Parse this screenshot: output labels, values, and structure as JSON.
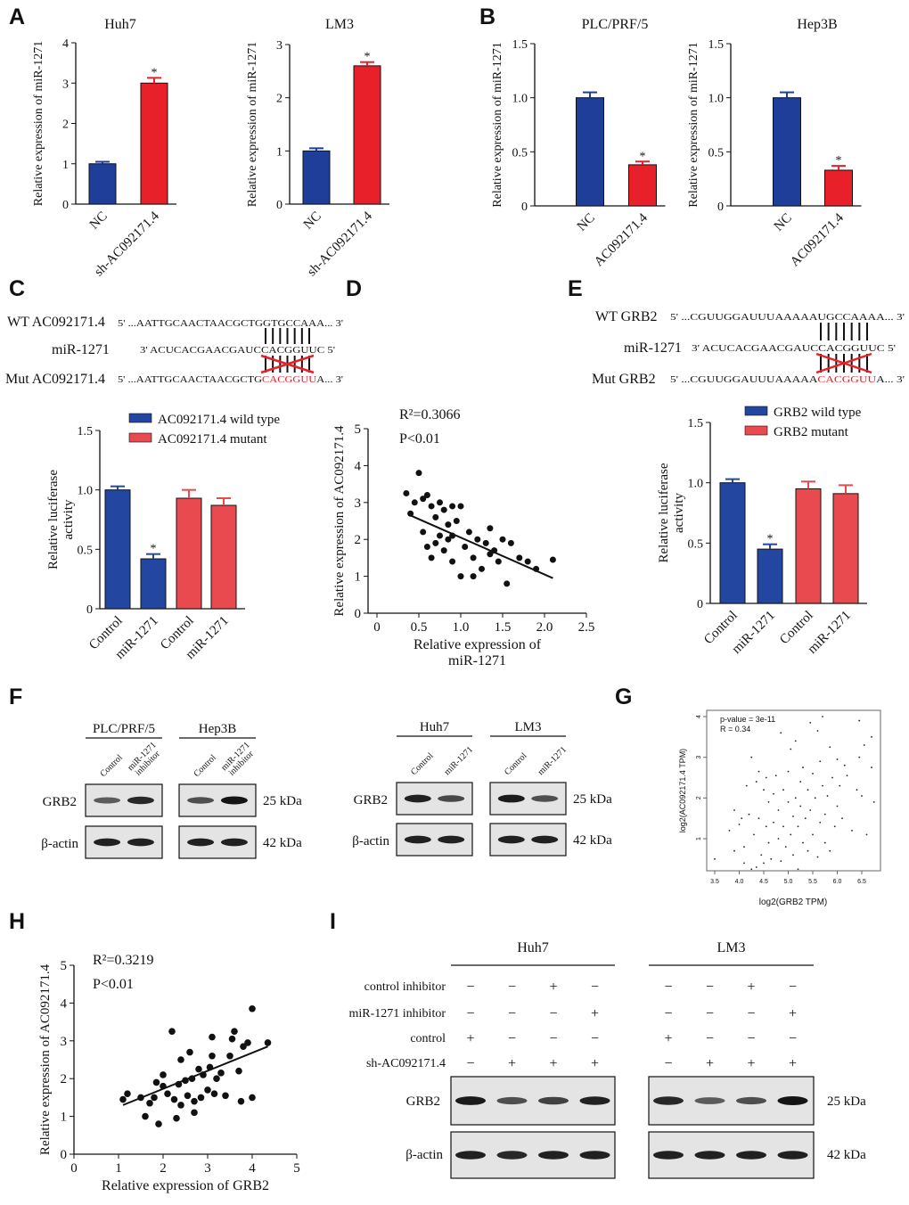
{
  "panel_letters": [
    "A",
    "B",
    "C",
    "D",
    "E",
    "F",
    "G",
    "H",
    "I"
  ],
  "colors": {
    "blue": "#1f3e9a",
    "red": "#e8202a",
    "red_light": "#e84a4f",
    "blue_luc": "#2347a0",
    "seq_red": "#e8202a"
  },
  "chart_data": [
    {
      "id": "A1",
      "type": "bar",
      "title": "Huh7",
      "ylabel": "Relative expression of miR-1271",
      "categories": [
        "NC",
        "sh-AC092171.4"
      ],
      "values": [
        1.0,
        3.0
      ],
      "errors": [
        0.05,
        0.13
      ],
      "significance": [
        "",
        "*"
      ],
      "ylim": [
        0,
        4
      ],
      "yticks": [
        "0",
        "1",
        "2",
        "3",
        "4"
      ],
      "bar_colors": [
        "blue",
        "red"
      ]
    },
    {
      "id": "A2",
      "type": "bar",
      "title": "LM3",
      "ylabel": "Relative expression of miR-1271",
      "categories": [
        "NC",
        "sh-AC092171.4"
      ],
      "values": [
        1.0,
        2.6
      ],
      "errors": [
        0.05,
        0.07
      ],
      "significance": [
        "",
        "*"
      ],
      "ylim": [
        0,
        3
      ],
      "yticks": [
        "0",
        "1",
        "2",
        "3"
      ],
      "bar_colors": [
        "blue",
        "red"
      ]
    },
    {
      "id": "B1",
      "type": "bar",
      "title": "PLC/PRF/5",
      "ylabel": "Relative expression of miR-1271",
      "categories": [
        "NC",
        "AC092171.4"
      ],
      "values": [
        1.0,
        0.38
      ],
      "errors": [
        0.05,
        0.03
      ],
      "significance": [
        "",
        "*"
      ],
      "ylim": [
        0,
        1.5
      ],
      "yticks": [
        "0",
        "0.5",
        "1.0",
        "1.5"
      ],
      "bar_colors": [
        "blue",
        "red"
      ]
    },
    {
      "id": "B2",
      "type": "bar",
      "title": "Hep3B",
      "ylabel": "Relative expression of miR-1271",
      "categories": [
        "NC",
        "AC092171.4"
      ],
      "values": [
        1.0,
        0.33
      ],
      "errors": [
        0.05,
        0.04
      ],
      "significance": [
        "",
        "*"
      ],
      "ylim": [
        0,
        1.5
      ],
      "yticks": [
        "0",
        "0.5",
        "1.0",
        "1.5"
      ],
      "bar_colors": [
        "blue",
        "red"
      ]
    },
    {
      "id": "C",
      "type": "bar",
      "title": "",
      "ylabel": "Relative luciferase activity",
      "categories": [
        "Control",
        "miR-1271",
        "Control",
        "miR-1271"
      ],
      "values": [
        1.0,
        0.42,
        0.93,
        0.87
      ],
      "errors": [
        0.03,
        0.04,
        0.07,
        0.06
      ],
      "significance": [
        "",
        "*",
        "",
        ""
      ],
      "ylim": [
        0,
        1.5
      ],
      "yticks": [
        "0",
        "0.5",
        "1.0",
        "1.5"
      ],
      "bar_colors": [
        "blue_luc",
        "blue_luc",
        "red_light",
        "red_light"
      ],
      "legend": [
        {
          "label": "AC092171.4 wild type",
          "color": "blue_luc"
        },
        {
          "label": "AC092171.4  mutant",
          "color": "red_light"
        }
      ]
    },
    {
      "id": "E",
      "type": "bar",
      "title": "",
      "ylabel": "Relative luciferase activity",
      "categories": [
        "Control",
        "miR-1271",
        "Control",
        "miR-1271"
      ],
      "values": [
        1.0,
        0.45,
        0.95,
        0.91
      ],
      "errors": [
        0.03,
        0.04,
        0.06,
        0.07
      ],
      "significance": [
        "",
        "*",
        "",
        ""
      ],
      "ylim": [
        0,
        1.5
      ],
      "yticks": [
        "0",
        "0.5",
        "1.0",
        "1.5"
      ],
      "bar_colors": [
        "blue_luc",
        "blue_luc",
        "red_light",
        "red_light"
      ],
      "legend": [
        {
          "label": "GRB2 wild type",
          "color": "blue_luc"
        },
        {
          "label": "GRB2 mutant",
          "color": "red_light"
        }
      ]
    },
    {
      "id": "D",
      "type": "scatter",
      "xlabel": "Relative expression of",
      "xlabel2": "miR-1271",
      "ylabel": "Relative expression of AC092171.4",
      "annotation": "R²=0.3066",
      "pvalue": "P<0.01",
      "xlim": [
        0,
        2.5
      ],
      "ylim": [
        0,
        5
      ],
      "xticks": [
        "0",
        "0.5",
        "1.0",
        "1.5",
        "2.0",
        "2.5"
      ],
      "yticks": [
        "0",
        "1",
        "2",
        "3",
        "4",
        "5"
      ],
      "points": [
        [
          0.35,
          3.25
        ],
        [
          0.45,
          3.0
        ],
        [
          0.5,
          3.8
        ],
        [
          0.55,
          3.1
        ],
        [
          0.6,
          3.2
        ],
        [
          0.4,
          2.7
        ],
        [
          0.65,
          2.9
        ],
        [
          0.7,
          2.6
        ],
        [
          0.75,
          3.0
        ],
        [
          0.8,
          2.8
        ],
        [
          0.85,
          2.4
        ],
        [
          0.9,
          2.9
        ],
        [
          0.55,
          2.2
        ],
        [
          0.6,
          1.8
        ],
        [
          0.7,
          1.9
        ],
        [
          0.65,
          1.5
        ],
        [
          0.75,
          2.1
        ],
        [
          0.8,
          1.7
        ],
        [
          0.85,
          2.0
        ],
        [
          0.9,
          1.4
        ],
        [
          0.95,
          2.5
        ],
        [
          1.0,
          1.0
        ],
        [
          1.05,
          1.8
        ],
        [
          1.1,
          2.2
        ],
        [
          1.15,
          1.5
        ],
        [
          1.2,
          2.0
        ],
        [
          1.25,
          1.2
        ],
        [
          1.3,
          1.9
        ],
        [
          1.35,
          2.3
        ],
        [
          1.4,
          1.7
        ],
        [
          1.45,
          1.4
        ],
        [
          1.5,
          2.0
        ],
        [
          1.55,
          0.8
        ],
        [
          1.6,
          1.9
        ],
        [
          1.7,
          1.5
        ],
        [
          1.8,
          1.4
        ],
        [
          1.9,
          1.2
        ],
        [
          2.1,
          1.45
        ],
        [
          1.0,
          2.9
        ],
        [
          0.9,
          2.1
        ],
        [
          1.15,
          1.0
        ],
        [
          1.35,
          1.6
        ]
      ],
      "fit": [
        [
          0.4,
          2.65
        ],
        [
          2.1,
          0.95
        ]
      ]
    },
    {
      "id": "G",
      "type": "scatter",
      "xlabel": "log2(GRB2 TPM)",
      "ylabel": "log2(AC092171.4 TPM)",
      "annotation": "p-value = 3e-11",
      "annotation2": "R = 0.34",
      "xlim": [
        3.4,
        6.8
      ],
      "ylim": [
        0.1,
        4.1
      ],
      "xticks": [
        "3.5",
        "4.0",
        "4.5",
        "5.0",
        "5.5",
        "6.0",
        "6.5"
      ],
      "yticks": [
        "1",
        "2",
        "3",
        "4"
      ],
      "points": [
        [
          3.5,
          0.5
        ],
        [
          3.8,
          1.2
        ],
        [
          3.9,
          0.7
        ],
        [
          3.9,
          1.7
        ],
        [
          4.0,
          1.35
        ],
        [
          4.05,
          1.5
        ],
        [
          4.1,
          0.4
        ],
        [
          4.1,
          0.8
        ],
        [
          4.15,
          2.3
        ],
        [
          4.2,
          1.6
        ],
        [
          4.25,
          0.25
        ],
        [
          4.25,
          3.0
        ],
        [
          4.3,
          1.1
        ],
        [
          4.35,
          2.4
        ],
        [
          4.35,
          0.3
        ],
        [
          4.4,
          2.65
        ],
        [
          4.4,
          1.5
        ],
        [
          4.45,
          0.6
        ],
        [
          4.5,
          2.2
        ],
        [
          4.5,
          0.4
        ],
        [
          4.55,
          1.3
        ],
        [
          4.55,
          2.5
        ],
        [
          4.6,
          0.9
        ],
        [
          4.6,
          1.9
        ],
        [
          4.65,
          0.5
        ],
        [
          4.7,
          2.1
        ],
        [
          4.7,
          1.4
        ],
        [
          4.75,
          2.55
        ],
        [
          4.8,
          1.0
        ],
        [
          4.8,
          1.7
        ],
        [
          4.85,
          3.6
        ],
        [
          4.85,
          0.45
        ],
        [
          4.9,
          2.2
        ],
        [
          4.9,
          1.3
        ],
        [
          4.95,
          0.8
        ],
        [
          5.0,
          1.9
        ],
        [
          5.0,
          2.65
        ],
        [
          5.05,
          1.1
        ],
        [
          5.05,
          3.2
        ],
        [
          5.1,
          1.55
        ],
        [
          5.1,
          0.6
        ],
        [
          5.15,
          2.0
        ],
        [
          5.15,
          3.4
        ],
        [
          5.2,
          1.3
        ],
        [
          5.2,
          0.25
        ],
        [
          5.25,
          2.4
        ],
        [
          5.25,
          1.8
        ],
        [
          5.3,
          0.9
        ],
        [
          5.3,
          2.75
        ],
        [
          5.35,
          1.5
        ],
        [
          5.4,
          2.2
        ],
        [
          5.4,
          0.7
        ],
        [
          5.45,
          1.7
        ],
        [
          5.45,
          3.85
        ],
        [
          5.5,
          1.1
        ],
        [
          5.5,
          2.6
        ],
        [
          5.55,
          2.0
        ],
        [
          5.6,
          0.55
        ],
        [
          5.6,
          3.65
        ],
        [
          5.65,
          1.4
        ],
        [
          5.65,
          2.9
        ],
        [
          5.7,
          4.0
        ],
        [
          5.7,
          2.3
        ],
        [
          5.75,
          1.6
        ],
        [
          5.75,
          0.9
        ],
        [
          5.8,
          2.05
        ],
        [
          5.85,
          0.7
        ],
        [
          5.85,
          3.25
        ],
        [
          5.9,
          2.5
        ],
        [
          5.95,
          1.3
        ],
        [
          6.0,
          2.95
        ],
        [
          6.0,
          1.8
        ],
        [
          6.05,
          2.3
        ],
        [
          6.1,
          1.5
        ],
        [
          6.15,
          2.8
        ],
        [
          6.2,
          2.55
        ],
        [
          6.3,
          1.2
        ],
        [
          6.4,
          2.2
        ],
        [
          6.45,
          3.0
        ],
        [
          6.45,
          3.9
        ],
        [
          6.5,
          2.05
        ],
        [
          6.55,
          3.3
        ],
        [
          6.6,
          1.1
        ],
        [
          6.7,
          2.75
        ],
        [
          6.7,
          3.5
        ],
        [
          6.75,
          1.9
        ]
      ]
    },
    {
      "id": "H",
      "type": "scatter",
      "xlabel": "Relative expression of GRB2",
      "ylabel": "Relative expression of AC092171.4",
      "annotation": "R²=0.3219",
      "pvalue": "P<0.01",
      "xlim": [
        0,
        5
      ],
      "ylim": [
        0,
        5
      ],
      "xticks": [
        "0",
        "1",
        "2",
        "3",
        "4",
        "5"
      ],
      "yticks": [
        "0",
        "1",
        "2",
        "3",
        "4",
        "5"
      ],
      "points": [
        [
          1.1,
          1.45
        ],
        [
          1.2,
          1.6
        ],
        [
          1.5,
          1.5
        ],
        [
          1.6,
          1.0
        ],
        [
          1.7,
          1.35
        ],
        [
          1.8,
          1.5
        ],
        [
          1.85,
          1.9
        ],
        [
          1.9,
          0.8
        ],
        [
          2.0,
          2.1
        ],
        [
          2.1,
          1.6
        ],
        [
          2.2,
          3.25
        ],
        [
          2.25,
          1.45
        ],
        [
          2.3,
          0.95
        ],
        [
          2.35,
          1.85
        ],
        [
          2.4,
          1.3
        ],
        [
          2.5,
          1.95
        ],
        [
          2.55,
          1.55
        ],
        [
          2.6,
          2.7
        ],
        [
          2.65,
          2.0
        ],
        [
          2.7,
          1.4
        ],
        [
          2.8,
          2.25
        ],
        [
          2.85,
          1.5
        ],
        [
          2.9,
          2.1
        ],
        [
          3.0,
          1.7
        ],
        [
          3.05,
          2.3
        ],
        [
          3.1,
          2.6
        ],
        [
          3.15,
          1.6
        ],
        [
          3.2,
          2.0
        ],
        [
          3.1,
          3.1
        ],
        [
          3.3,
          2.15
        ],
        [
          3.4,
          1.55
        ],
        [
          3.5,
          2.6
        ],
        [
          3.55,
          3.05
        ],
        [
          3.6,
          3.25
        ],
        [
          3.7,
          2.2
        ],
        [
          3.75,
          1.4
        ],
        [
          3.8,
          2.85
        ],
        [
          3.9,
          2.95
        ],
        [
          4.0,
          3.85
        ],
        [
          4.0,
          1.5
        ],
        [
          4.35,
          2.95
        ],
        [
          2.4,
          2.5
        ],
        [
          2.0,
          1.8
        ],
        [
          2.7,
          1.1
        ]
      ],
      "fit": [
        [
          1.1,
          1.3
        ],
        [
          4.35,
          2.85
        ]
      ]
    }
  ],
  "sequences": {
    "C": {
      "wt_label": "WT AC092171.4",
      "wt_seq": "5' ...AATTGCAACTAACGCTGGTGCCAAA... 3'",
      "mir_label": "miR-1271",
      "mir_seq": "3' ACUCACGAACGAUCCACGGUUC 5'",
      "mut_label": "Mut AC092171.4",
      "mut_seq_a": "5' ...AATTGCAACTAACGCTG",
      "mut_seq_red": "CACGGUU",
      "mut_seq_b": "A... 3'"
    },
    "E": {
      "wt_label": "WT GRB2",
      "wt_seq": "5' ...CGUUGGAUUUAAAAAUGCCAAAA... 3'",
      "mir_label": "miR-1271",
      "mir_seq": "3' ACUCACGAACGAUCCACGGUUC 5'",
      "mut_label": "Mut GRB2",
      "mut_seq_a": "5' ...CGUUGGAUUUAAAAA",
      "mut_seq_red": "CACGGUU",
      "mut_seq_b": "A... 3'"
    }
  },
  "blot_F": {
    "groups": [
      {
        "cell": "PLC/PRF/5",
        "lanes": [
          "Control",
          "miR-1271 inhibitor"
        ],
        "grb2": [
          0.45,
          0.85
        ],
        "actin": [
          0.9,
          0.9
        ]
      },
      {
        "cell": "Hep3B",
        "lanes": [
          "Control",
          "miR-1271 inhibitor"
        ],
        "grb2": [
          0.55,
          1.0
        ],
        "actin": [
          0.9,
          0.9
        ]
      },
      {
        "cell": "Huh7",
        "lanes": [
          "Control",
          "miR-1271"
        ],
        "grb2": [
          0.9,
          0.6
        ],
        "actin": [
          0.9,
          0.9
        ]
      },
      {
        "cell": "LM3",
        "lanes": [
          "Control",
          "miR-1271"
        ],
        "grb2": [
          0.95,
          0.55
        ],
        "actin": [
          0.9,
          0.9
        ]
      }
    ],
    "row_labels": [
      "GRB2",
      "β-actin"
    ],
    "sizes": [
      "25 kDa",
      "42 kDa"
    ]
  },
  "blot_I": {
    "groups": [
      {
        "cell": "Huh7",
        "grb2": [
          0.95,
          0.55,
          0.65,
          0.9
        ],
        "actin": [
          0.9,
          0.85,
          0.9,
          0.9
        ]
      },
      {
        "cell": "LM3",
        "grb2": [
          0.85,
          0.45,
          0.55,
          1.0
        ],
        "actin": [
          0.9,
          0.9,
          0.9,
          0.9
        ]
      }
    ],
    "conditions": [
      {
        "label": "control inhibitor",
        "signs": [
          "−",
          "−",
          "+",
          "−"
        ]
      },
      {
        "label": "miR-1271 inhibitor",
        "signs": [
          "−",
          "−",
          "−",
          "+"
        ]
      },
      {
        "label": "control",
        "signs": [
          "+",
          "−",
          "−",
          "−"
        ]
      },
      {
        "label": "sh-AC092171.4",
        "signs": [
          "−",
          "+",
          "+",
          "+"
        ]
      }
    ],
    "row_labels": [
      "GRB2",
      "β-actin"
    ],
    "sizes": [
      "25 kDa",
      "42 kDa"
    ]
  }
}
